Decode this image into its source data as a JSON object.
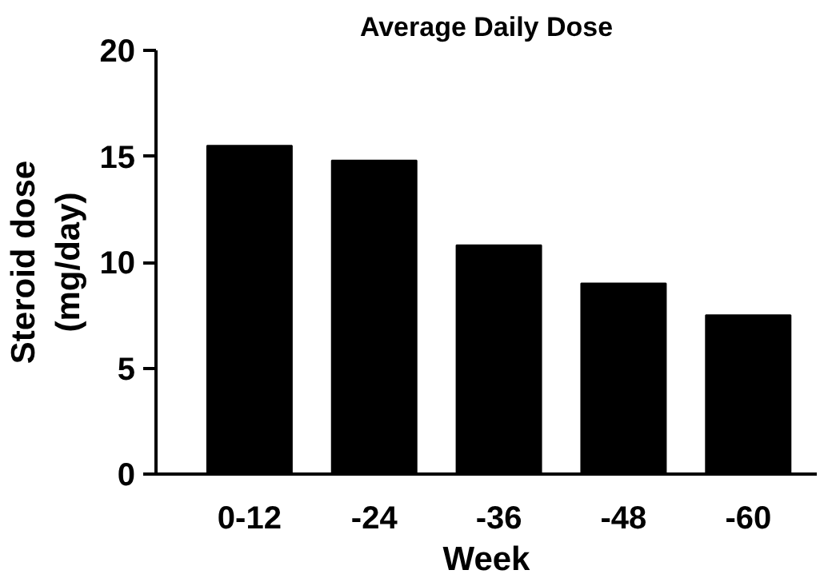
{
  "chart_data": {
    "type": "bar",
    "title": "Average Daily Dose",
    "xlabel": "Week",
    "ylabel": "Steroid dose\n(mg/day)",
    "categories": [
      "0-12",
      "-24",
      "-36",
      "-48",
      "-60"
    ],
    "values": [
      15.5,
      14.8,
      10.8,
      9.0,
      7.5
    ],
    "color": "#000000",
    "ylim": [
      0,
      20
    ],
    "yticks": [
      0,
      5,
      10,
      15,
      20
    ],
    "grid": false
  }
}
